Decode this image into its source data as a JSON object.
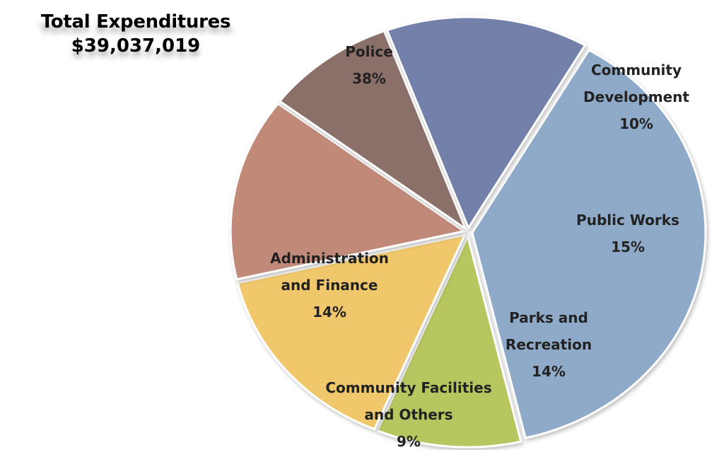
{
  "header": {
    "title": "Total Expenditures",
    "total": "$39,037,019"
  },
  "chart_data": {
    "type": "pie",
    "slices": [
      {
        "label": [
          "Police"
        ],
        "value": 38,
        "pct_label": "38%",
        "color": "#8EAAC8"
      },
      {
        "label": [
          "Community",
          "Development"
        ],
        "value": 10,
        "pct_label": "10%",
        "color": "#B7C65E"
      },
      {
        "label": [
          "Public Works"
        ],
        "value": 15,
        "pct_label": "15%",
        "color": "#F0C76A"
      },
      {
        "label": [
          "Parks and",
          "Recreation"
        ],
        "value": 14,
        "pct_label": "14%",
        "color": "#C08978"
      },
      {
        "label": [
          "Community Facilities",
          "and Others"
        ],
        "value": 9,
        "pct_label": "9%",
        "color": "#8A6F68"
      },
      {
        "label": [
          "Administration",
          "and Finance"
        ],
        "value": 14,
        "pct_label": "14%",
        "color": "#7380A9"
      }
    ]
  }
}
